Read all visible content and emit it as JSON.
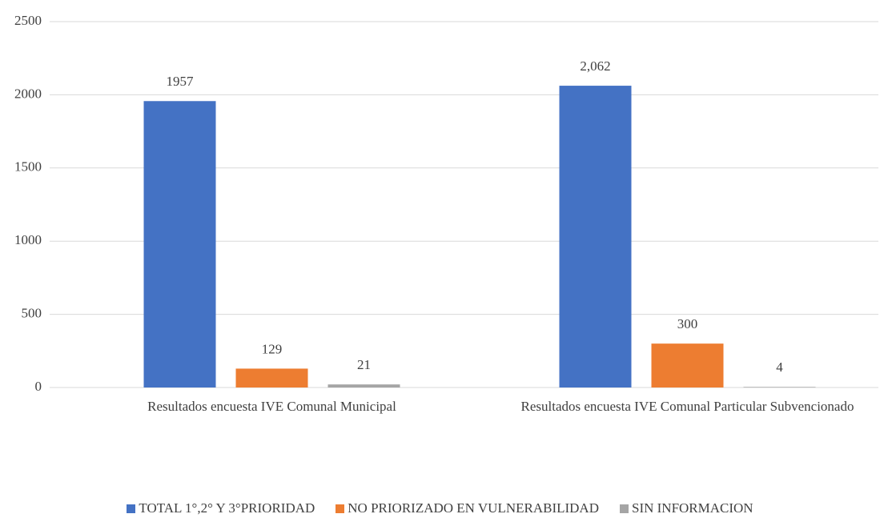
{
  "chart_data": {
    "type": "bar",
    "categories": [
      "Resultados encuesta IVE Comunal Municipal",
      "Resultados encuesta IVE Comunal Particular Subvencionado"
    ],
    "series": [
      {
        "name": "TOTAL 1°,2° Y 3°PRIORIDAD",
        "color": "#4472c4",
        "values": [
          1957,
          2062
        ],
        "value_labels": [
          "1957",
          "2,062"
        ]
      },
      {
        "name": "NO PRIORIZADO EN VULNERABILIDAD",
        "color": "#ed7d31",
        "values": [
          129,
          300
        ]
      },
      {
        "name": "SIN INFORMACION",
        "color": "#a5a5a5",
        "values": [
          21,
          4
        ]
      }
    ],
    "ylim": [
      0,
      2500
    ],
    "yticks": [
      0,
      500,
      1000,
      1500,
      2000,
      2500
    ],
    "grid": true,
    "legend": "bottom"
  }
}
